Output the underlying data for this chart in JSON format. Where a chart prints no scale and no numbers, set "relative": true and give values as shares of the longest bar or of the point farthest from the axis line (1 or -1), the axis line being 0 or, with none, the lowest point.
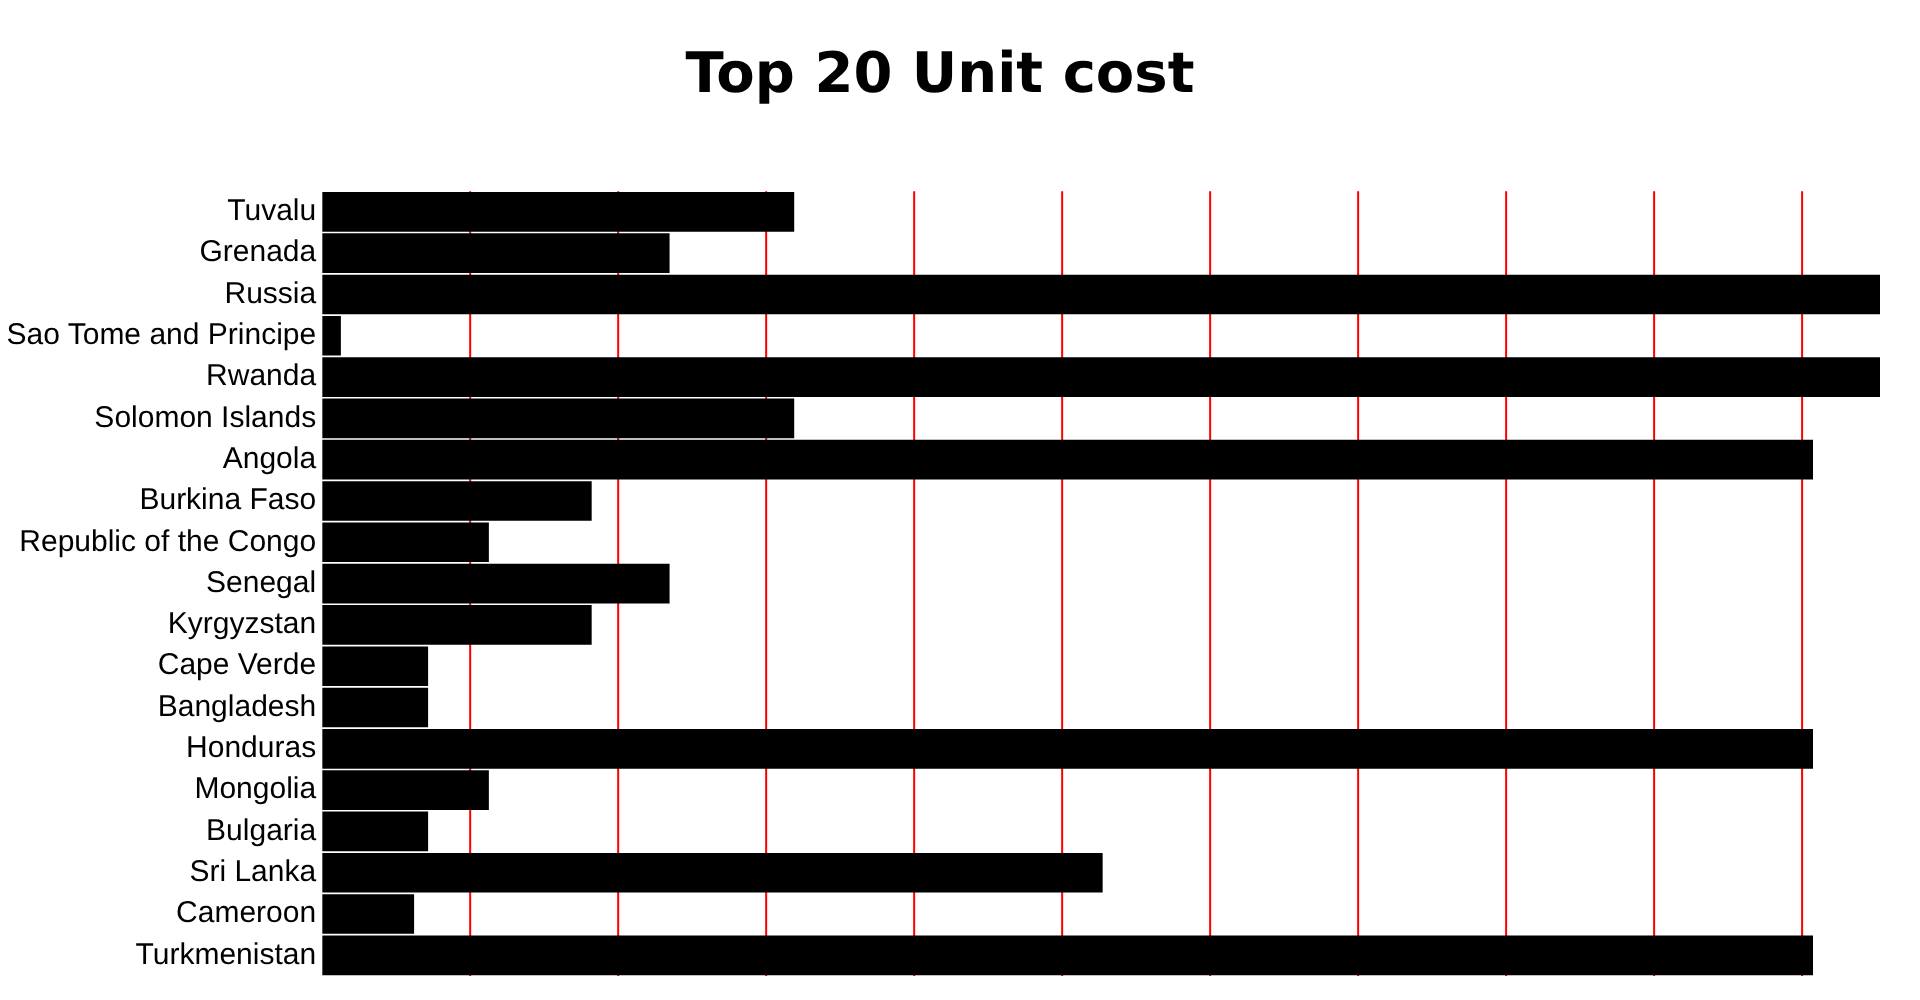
{
  "chart_data": {
    "type": "bar",
    "title": "Top 20 Unit cost",
    "orientation": "horizontal",
    "relative": true,
    "color": "#000000",
    "ref_lines": [
      {
        "axis": "x",
        "value": 0.095,
        "color": "#ff0000"
      },
      {
        "axis": "x",
        "value": 0.19,
        "color": "#ff0000"
      },
      {
        "axis": "x",
        "value": 0.285,
        "color": "#ff0000"
      },
      {
        "axis": "x",
        "value": 0.38,
        "color": "#ff0000"
      },
      {
        "axis": "x",
        "value": 0.475,
        "color": "#ff0000"
      },
      {
        "axis": "x",
        "value": 0.57,
        "color": "#ff0000"
      },
      {
        "axis": "x",
        "value": 0.665,
        "color": "#ff0000"
      },
      {
        "axis": "x",
        "value": 0.76,
        "color": "#ff0000"
      },
      {
        "axis": "x",
        "value": 0.855,
        "color": "#ff0000"
      },
      {
        "axis": "x",
        "value": 0.95,
        "color": "#ff0000"
      }
    ],
    "categories": [
      "Tuvalu",
      "Grenada",
      "Russia",
      "Sao Tome and Principe",
      "Rwanda",
      "Solomon Islands",
      "Angola",
      "Burkina Faso",
      "Republic of the Congo",
      "Senegal",
      "Kyrgyzstan",
      "Cape Verde",
      "Bangladesh",
      "Honduras",
      "Mongolia",
      "Bulgaria",
      "Sri Lanka",
      "Cameroon",
      "Turkmenistan"
    ],
    "values": [
      0.303,
      0.223,
      1,
      0.012,
      1,
      0.303,
      0.957,
      0.173,
      0.107,
      0.223,
      0.173,
      0.068,
      0.068,
      0.957,
      0.107,
      0.068,
      0.501,
      0.059,
      0.957
    ]
  }
}
